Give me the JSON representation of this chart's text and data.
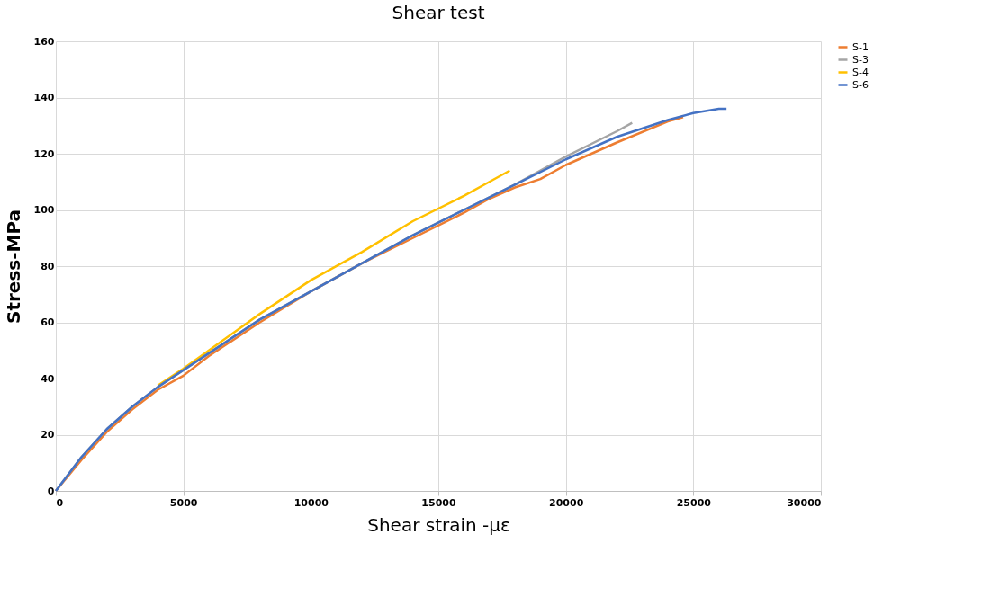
{
  "chart_data": {
    "type": "line",
    "title": "Shear test",
    "xlabel": "Shear strain -με",
    "ylabel": "Stress-MPa",
    "xlim": [
      0,
      30000
    ],
    "xticks": [
      0,
      5000,
      10000,
      15000,
      20000,
      25000,
      30000
    ],
    "ylim": [
      0,
      160
    ],
    "yticks": [
      0,
      20,
      40,
      60,
      80,
      100,
      120,
      140,
      160
    ],
    "grid": true,
    "legend": "right",
    "marker": "none",
    "line_style": "solid",
    "series": [
      {
        "name": "S-1",
        "color": "#ed7d31",
        "x": [
          0,
          1000,
          2000,
          3000,
          4000,
          5000,
          6000,
          8000,
          10000,
          12000,
          14000,
          16000,
          17000,
          18000,
          19000,
          20000,
          22000,
          24000,
          24600
        ],
        "values": [
          0,
          11,
          21,
          29,
          36,
          41,
          48,
          60,
          71,
          81,
          90,
          99,
          104,
          108,
          111,
          116,
          124,
          131.5,
          133
        ]
      },
      {
        "name": "S-3",
        "color": "#a5a5a5",
        "x": [
          0,
          1000,
          2000,
          3000,
          4000,
          5000,
          6000,
          8000,
          10000,
          12000,
          14000,
          16000,
          18000,
          20000,
          22000,
          22600
        ],
        "values": [
          0,
          12,
          22,
          30,
          37,
          43,
          49,
          61,
          71,
          81,
          91,
          100,
          109,
          119,
          128,
          131
        ]
      },
      {
        "name": "S-4",
        "color": "#ffc000",
        "x": [
          4000,
          5000,
          6000,
          8000,
          10000,
          12000,
          14000,
          16000,
          17000,
          17800
        ],
        "values": [
          37.5,
          43.5,
          50,
          63,
          75,
          85,
          96,
          105,
          110,
          114
        ]
      },
      {
        "name": "S-6",
        "color": "#4472c4",
        "x": [
          0,
          1000,
          2000,
          3000,
          4000,
          5000,
          6000,
          8000,
          10000,
          12000,
          14000,
          16000,
          18000,
          20000,
          22000,
          24000,
          25000,
          26000,
          26300
        ],
        "values": [
          0,
          12,
          22,
          30,
          37,
          43,
          49,
          61,
          71,
          81,
          91,
          100,
          109,
          118,
          126,
          132,
          134.5,
          136,
          136
        ]
      }
    ]
  }
}
